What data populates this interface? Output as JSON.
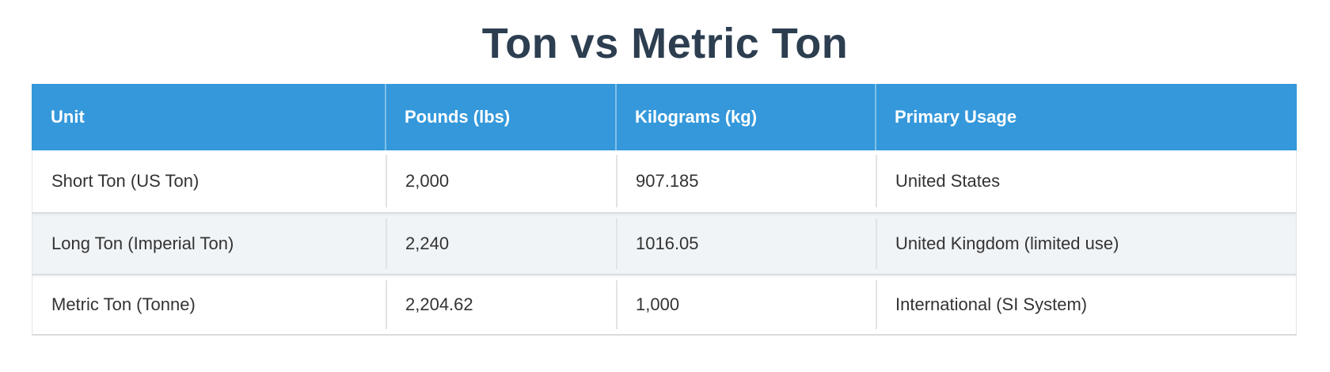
{
  "page": {
    "title": "Ton vs Metric Ton"
  },
  "table": {
    "columns": [
      {
        "label": "Unit"
      },
      {
        "label": "Pounds (lbs)"
      },
      {
        "label": "Kilograms (kg)"
      },
      {
        "label": "Primary Usage"
      }
    ],
    "rows": [
      {
        "unit": "Short Ton (US Ton)",
        "pounds": "2,000",
        "kilograms": "907.185",
        "usage": "United States"
      },
      {
        "unit": "Long Ton (Imperial Ton)",
        "pounds": "2,240",
        "kilograms": "1016.05",
        "usage": "United Kingdom (limited use)"
      },
      {
        "unit": "Metric Ton (Tonne)",
        "pounds": "2,204.62",
        "kilograms": "1,000",
        "usage": "International (SI System)"
      }
    ]
  },
  "colors": {
    "header_bg": "#3498db",
    "header_text": "#ffffff",
    "row_bg": "#ffffff",
    "row_alt_bg": "#f0f4f7",
    "border": "#d9dcde",
    "title_text": "#2c3e50",
    "body_text": "#333333"
  }
}
